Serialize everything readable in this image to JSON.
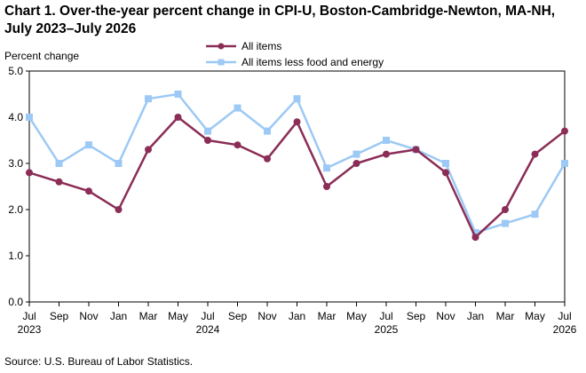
{
  "title": "Chart 1. Over-the-year percent change in CPI-U, Boston-Cambridge-Newton, MA-NH, July 2023–July 2026",
  "source": "Source: U.S. Bureau of Labor Statistics.",
  "colors": {
    "all_items": "#8B2D56",
    "core": "#9CC9F5",
    "axis": "#000000"
  },
  "chart_data": {
    "type": "line",
    "title": "Chart 1. Over-the-year percent change in CPI-U, Boston-Cambridge-Newton, MA-NH, July 2023–July 2026",
    "ylabel": "Percent change",
    "xlabel": "",
    "ylim": [
      0.0,
      5.0
    ],
    "yticks": [
      "0.0",
      "1.0",
      "2.0",
      "3.0",
      "4.0",
      "5.0"
    ],
    "grid": false,
    "legend_position": "top",
    "x": [
      "Jul 2023",
      "Sep 2023",
      "Nov 2023",
      "Jan 2024",
      "Mar 2024",
      "May 2024",
      "Jul 2024",
      "Sep 2024",
      "Nov 2024",
      "Jan 2025",
      "Mar 2025",
      "May 2025",
      "Jul 2025",
      "Sep 2025",
      "Nov 2025",
      "Jan 2026",
      "Mar 2026",
      "May 2026",
      "Jul 2026"
    ],
    "x_tick_months": [
      "Jul",
      "Sep",
      "Nov",
      "Jan",
      "Mar",
      "May",
      "Jul",
      "Sep",
      "Nov",
      "Jan",
      "Mar",
      "May",
      "Jul",
      "Sep",
      "Nov",
      "Jan",
      "Mar",
      "May",
      "Jul"
    ],
    "x_tick_years": [
      "2023",
      "",
      "",
      "",
      "",
      "",
      "2024",
      "",
      "",
      "",
      "",
      "",
      "2025",
      "",
      "",
      "",
      "",
      "",
      "2026"
    ],
    "series": [
      {
        "name": "All items",
        "marker": "circle",
        "values": [
          2.8,
          2.6,
          2.4,
          2.0,
          3.3,
          4.0,
          3.5,
          3.4,
          3.1,
          3.9,
          2.5,
          3.0,
          3.2,
          3.3,
          2.8,
          1.4,
          2.0,
          3.2,
          3.7
        ]
      },
      {
        "name": "All items less food and energy",
        "marker": "square",
        "values": [
          4.0,
          3.0,
          3.4,
          3.0,
          4.4,
          4.5,
          3.7,
          4.2,
          3.7,
          4.4,
          2.9,
          3.2,
          3.5,
          3.3,
          3.0,
          1.5,
          1.7,
          1.9,
          3.0
        ]
      }
    ]
  }
}
